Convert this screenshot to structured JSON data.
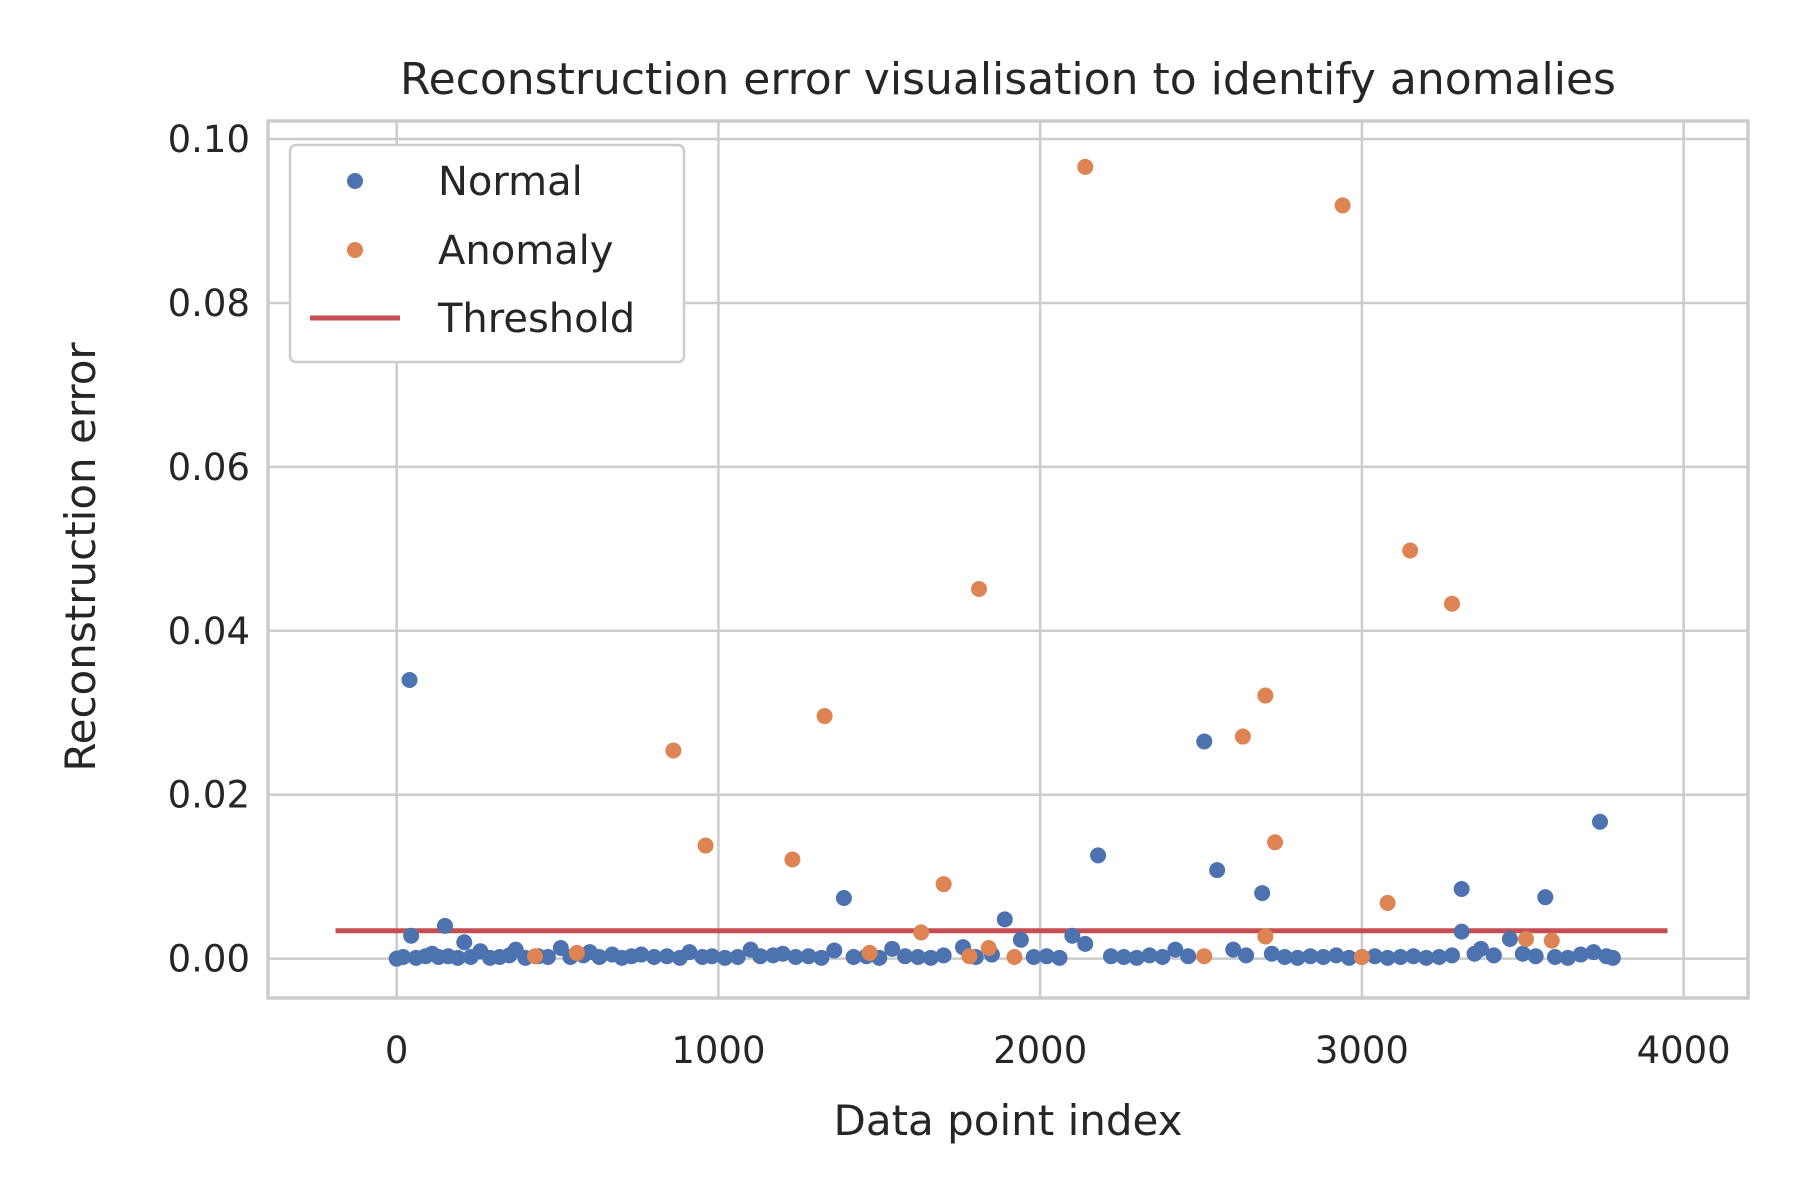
{
  "chart_data": {
    "type": "scatter",
    "title": "Reconstruction error visualisation to identify anomalies",
    "xlabel": "Data point index",
    "ylabel": "Reconstruction error",
    "xlim": [
      -400,
      4200
    ],
    "ylim": [
      -0.0048,
      0.1022
    ],
    "xticks": [
      0,
      1000,
      2000,
      3000,
      4000
    ],
    "xtick_labels": [
      "0",
      "1000",
      "2000",
      "3000",
      "4000"
    ],
    "yticks": [
      0.0,
      0.02,
      0.04,
      0.06,
      0.08,
      0.1
    ],
    "ytick_labels": [
      "0.00",
      "0.02",
      "0.04",
      "0.06",
      "0.08",
      "0.10"
    ],
    "grid": true,
    "legend_position": "top-left",
    "legend": [
      "Normal",
      "Anomaly",
      "Threshold"
    ],
    "series": [
      {
        "name": "Normal",
        "kind": "scatter",
        "color": "#4c72b0",
        "points": [
          [
            0,
            0.0
          ],
          [
            20,
            0.0002
          ],
          [
            40,
            0.034
          ],
          [
            45,
            0.0028
          ],
          [
            60,
            0.0001
          ],
          [
            90,
            0.0003
          ],
          [
            110,
            0.0006
          ],
          [
            130,
            0.0002
          ],
          [
            150,
            0.004
          ],
          [
            160,
            0.0003
          ],
          [
            190,
            0.0001
          ],
          [
            210,
            0.002
          ],
          [
            230,
            0.0002
          ],
          [
            260,
            0.0009
          ],
          [
            290,
            0.0001
          ],
          [
            320,
            0.0002
          ],
          [
            350,
            0.0004
          ],
          [
            370,
            0.0011
          ],
          [
            400,
            0.0001
          ],
          [
            440,
            0.0003
          ],
          [
            470,
            0.0002
          ],
          [
            510,
            0.0013
          ],
          [
            540,
            0.0002
          ],
          [
            580,
            0.0004
          ],
          [
            600,
            0.0008
          ],
          [
            630,
            0.0002
          ],
          [
            670,
            0.0005
          ],
          [
            700,
            0.0001
          ],
          [
            730,
            0.0003
          ],
          [
            760,
            0.0005
          ],
          [
            800,
            0.0002
          ],
          [
            840,
            0.0003
          ],
          [
            880,
            0.0001
          ],
          [
            910,
            0.0008
          ],
          [
            950,
            0.0002
          ],
          [
            980,
            0.0003
          ],
          [
            1020,
            0.0001
          ],
          [
            1060,
            0.0002
          ],
          [
            1100,
            0.0011
          ],
          [
            1130,
            0.0003
          ],
          [
            1170,
            0.0004
          ],
          [
            1200,
            0.0006
          ],
          [
            1240,
            0.0002
          ],
          [
            1280,
            0.0003
          ],
          [
            1320,
            0.0001
          ],
          [
            1360,
            0.001
          ],
          [
            1390,
            0.0074
          ],
          [
            1420,
            0.0002
          ],
          [
            1460,
            0.0003
          ],
          [
            1500,
            0.0001
          ],
          [
            1540,
            0.0012
          ],
          [
            1580,
            0.0003
          ],
          [
            1620,
            0.0002
          ],
          [
            1660,
            0.0001
          ],
          [
            1700,
            0.0004
          ],
          [
            1760,
            0.0014
          ],
          [
            1800,
            0.0002
          ],
          [
            1850,
            0.0005
          ],
          [
            1890,
            0.0048
          ],
          [
            1940,
            0.0023
          ],
          [
            1980,
            0.0002
          ],
          [
            2020,
            0.0003
          ],
          [
            2060,
            0.0001
          ],
          [
            2100,
            0.0028
          ],
          [
            2140,
            0.0018
          ],
          [
            2180,
            0.0126
          ],
          [
            2220,
            0.0003
          ],
          [
            2260,
            0.0002
          ],
          [
            2300,
            0.0001
          ],
          [
            2340,
            0.0004
          ],
          [
            2380,
            0.0002
          ],
          [
            2420,
            0.0011
          ],
          [
            2460,
            0.0003
          ],
          [
            2510,
            0.0265
          ],
          [
            2550,
            0.0108
          ],
          [
            2600,
            0.0011
          ],
          [
            2640,
            0.0004
          ],
          [
            2690,
            0.008
          ],
          [
            2720,
            0.0006
          ],
          [
            2760,
            0.0002
          ],
          [
            2800,
            0.0001
          ],
          [
            2840,
            0.0003
          ],
          [
            2880,
            0.0002
          ],
          [
            2920,
            0.0004
          ],
          [
            2960,
            0.0001
          ],
          [
            3000,
            0.0002
          ],
          [
            3040,
            0.0003
          ],
          [
            3080,
            0.0001
          ],
          [
            3120,
            0.0002
          ],
          [
            3160,
            0.0003
          ],
          [
            3200,
            0.0001
          ],
          [
            3240,
            0.0002
          ],
          [
            3280,
            0.0004
          ],
          [
            3310,
            0.0085
          ],
          [
            3310,
            0.0033
          ],
          [
            3350,
            0.0006
          ],
          [
            3370,
            0.0012
          ],
          [
            3410,
            0.0004
          ],
          [
            3460,
            0.0024
          ],
          [
            3500,
            0.0006
          ],
          [
            3540,
            0.0003
          ],
          [
            3570,
            0.0075
          ],
          [
            3600,
            0.0002
          ],
          [
            3640,
            0.0001
          ],
          [
            3680,
            0.0005
          ],
          [
            3720,
            0.0008
          ],
          [
            3740,
            0.0167
          ],
          [
            3760,
            0.0003
          ],
          [
            3780,
            0.0001
          ]
        ]
      },
      {
        "name": "Anomaly",
        "kind": "scatter",
        "color": "#dd8452",
        "points": [
          [
            430,
            0.0003
          ],
          [
            560,
            0.0007
          ],
          [
            860,
            0.0254
          ],
          [
            960,
            0.0138
          ],
          [
            1230,
            0.0121
          ],
          [
            1330,
            0.0296
          ],
          [
            1470,
            0.0007
          ],
          [
            1630,
            0.0032
          ],
          [
            1700,
            0.0091
          ],
          [
            1780,
            0.0003
          ],
          [
            1810,
            0.0451
          ],
          [
            1840,
            0.0013
          ],
          [
            1920,
            0.0002
          ],
          [
            2140,
            0.0966
          ],
          [
            2510,
            0.0003
          ],
          [
            2630,
            0.0271
          ],
          [
            2700,
            0.0321
          ],
          [
            2700,
            0.0027
          ],
          [
            2730,
            0.0142
          ],
          [
            2940,
            0.0919
          ],
          [
            3000,
            0.0002
          ],
          [
            3080,
            0.0068
          ],
          [
            3150,
            0.0498
          ],
          [
            3280,
            0.0433
          ],
          [
            3510,
            0.0024
          ],
          [
            3590,
            0.0022
          ]
        ]
      },
      {
        "name": "Threshold",
        "kind": "line",
        "color": "#c44e52",
        "y": 0.0034,
        "x_range": [
          -190,
          3950
        ]
      }
    ]
  }
}
